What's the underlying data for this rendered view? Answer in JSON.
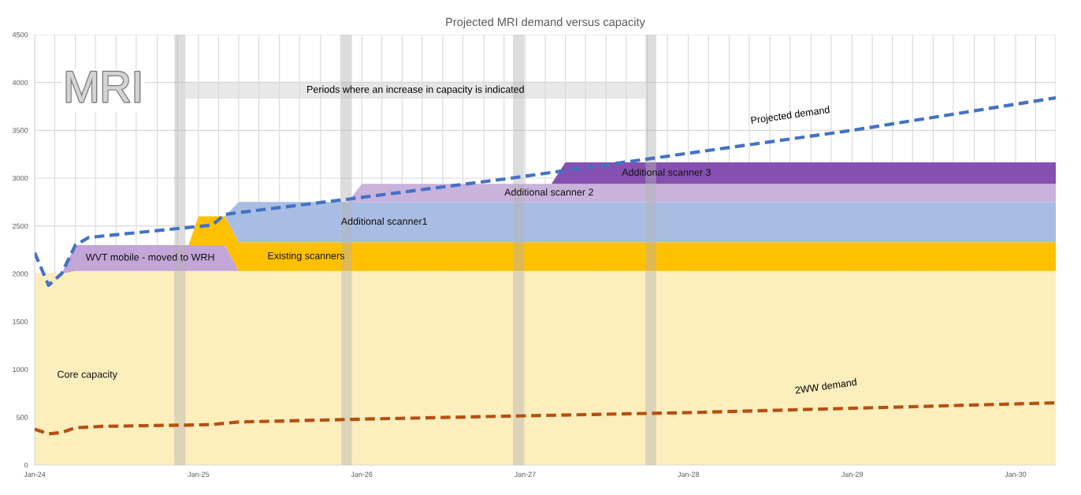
{
  "chart_data": {
    "type": "area",
    "title": "Projected MRI demand versus capacity",
    "stacked": true,
    "legend": false,
    "grid": true,
    "line_style": "dashed",
    "marker": "none",
    "x": [
      "2024-01",
      "2024-03",
      "2024-04",
      "2024-12-10",
      "2025-01",
      "2025-03",
      "2025-04",
      "2025-12",
      "2026-01",
      "2027-03",
      "2027-04",
      "2030-04"
    ],
    "series": [
      {
        "name": "Core capacity",
        "color": "#fdeebe",
        "values": [
          2000,
          2000,
          2030,
          2030,
          2030,
          2030,
          2030,
          2030,
          2030,
          2030,
          2030,
          2030
        ]
      },
      {
        "name": "WVT mobile - moved to WRH",
        "color": "#c3a5d8",
        "values": [
          0,
          0,
          270,
          270,
          270,
          270,
          0,
          0,
          0,
          0,
          0,
          0
        ]
      },
      {
        "name": "Existing scanners",
        "color": "#ffc000",
        "values": [
          0,
          0,
          0,
          0,
          300,
          300,
          300,
          300,
          300,
          300,
          300,
          300
        ]
      },
      {
        "name": "Additional scanner1",
        "color": "#a9bde3",
        "values": [
          0,
          0,
          0,
          0,
          0,
          0,
          420,
          420,
          420,
          420,
          420,
          420
        ]
      },
      {
        "name": "Additional scanner 2",
        "color": "#c9b3dd",
        "values": [
          0,
          0,
          0,
          0,
          0,
          0,
          0,
          0,
          190,
          190,
          190,
          190
        ]
      },
      {
        "name": "Additional scanner 3",
        "color": "#8650b0",
        "values": [
          0,
          0,
          0,
          0,
          0,
          0,
          0,
          0,
          0,
          0,
          225,
          225
        ]
      },
      {
        "name": "Projected demand",
        "type": "line",
        "color": "#4472c4",
        "x": [
          "2024-01",
          "2024-02",
          "2024-03",
          "2024-04",
          "2024-05",
          "2024-12",
          "2025-02",
          "2025-03",
          "2025-04",
          "2025-12",
          "2026-12",
          "2027-08",
          "2029-01",
          "2030-04"
        ],
        "values": [
          2220,
          1880,
          2000,
          2300,
          2380,
          2480,
          2510,
          2620,
          2640,
          2780,
          3000,
          3160,
          3500,
          3840
        ]
      },
      {
        "name": "2WW demand",
        "type": "line",
        "color": "#b5500f",
        "x": [
          "2024-01",
          "2024-02",
          "2024-03",
          "2024-04",
          "2024-06",
          "2025-01",
          "2025-02",
          "2025-04",
          "2026-01",
          "2027-01",
          "2028-01",
          "2029-01",
          "2030-04"
        ],
        "values": [
          375,
          326,
          340,
          390,
          405,
          420,
          425,
          450,
          480,
          515,
          548,
          594,
          650
        ]
      }
    ],
    "bands": [
      {
        "axis": "x",
        "from": "2024-11-08",
        "to": "2024-12-03",
        "color": "#b4b4b4"
      },
      {
        "axis": "x",
        "from": "2025-11-16",
        "to": "2025-12-10",
        "color": "#b4b4b4"
      },
      {
        "axis": "x",
        "from": "2026-12-05",
        "to": "2026-12-30",
        "color": "#b4b4b4"
      },
      {
        "axis": "x",
        "from": "2027-09-27",
        "to": "2027-10-21",
        "color": "#b4b4b4"
      }
    ],
    "annotations": [
      "MRI",
      "Periods where an increase in capacity is indicated"
    ],
    "ylim": [
      0,
      4500
    ],
    "yticks": [
      0,
      500,
      1000,
      1500,
      2000,
      2500,
      3000,
      3500,
      4000,
      4500
    ],
    "xlim": [
      "2024-01",
      "2030-04"
    ],
    "xticks": [
      {
        "value": "2024-01",
        "label": "Jan-24"
      },
      {
        "value": "2024-02-15",
        "label": null
      },
      {
        "value": "2024-04-01",
        "label": null
      },
      {
        "value": "2024-05-16",
        "label": null
      },
      {
        "value": "2024-07-01",
        "label": null
      },
      {
        "value": "2024-08-15",
        "label": null
      },
      {
        "value": "2024-10-01",
        "label": null
      },
      {
        "value": "2024-11-15",
        "label": null
      },
      {
        "value": "2025-01",
        "label": "Jan-25"
      },
      {
        "value": "2025-02-15",
        "label": null
      },
      {
        "value": "2025-04-01",
        "label": null
      },
      {
        "value": "2025-05-16",
        "label": null
      },
      {
        "value": "2025-07-01",
        "label": null
      },
      {
        "value": "2025-08-15",
        "label": null
      },
      {
        "value": "2025-10-01",
        "label": null
      },
      {
        "value": "2025-11-15",
        "label": null
      },
      {
        "value": "2026-01",
        "label": "Jan-26"
      },
      {
        "value": "2026-02-15",
        "label": null
      },
      {
        "value": "2026-04-01",
        "label": null
      },
      {
        "value": "2026-05-16",
        "label": null
      },
      {
        "value": "2026-07-01",
        "label": null
      },
      {
        "value": "2026-08-15",
        "label": null
      },
      {
        "value": "2026-10-01",
        "label": null
      },
      {
        "value": "2026-11-15",
        "label": null
      },
      {
        "value": "2027-01",
        "label": "Jan-27"
      },
      {
        "value": "2027-02-15",
        "label": null
      },
      {
        "value": "2027-04-01",
        "label": null
      },
      {
        "value": "2027-05-16",
        "label": null
      },
      {
        "value": "2027-07-01",
        "label": null
      },
      {
        "value": "2027-08-15",
        "label": null
      },
      {
        "value": "2027-10-01",
        "label": null
      },
      {
        "value": "2027-11-15",
        "label": null
      },
      {
        "value": "2028-01",
        "label": "Jan-28"
      },
      {
        "value": "2028-02-15",
        "label": null
      },
      {
        "value": "2028-04-01",
        "label": null
      },
      {
        "value": "2028-05-16",
        "label": null
      },
      {
        "value": "2028-07-01",
        "label": null
      },
      {
        "value": "2028-08-15",
        "label": null
      },
      {
        "value": "2028-10-01",
        "label": null
      },
      {
        "value": "2028-11-15",
        "label": null
      },
      {
        "value": "2029-01",
        "label": "Jan-29"
      },
      {
        "value": "2029-02-15",
        "label": null
      },
      {
        "value": "2029-04-01",
        "label": null
      },
      {
        "value": "2029-05-16",
        "label": null
      },
      {
        "value": "2029-07-01",
        "label": null
      },
      {
        "value": "2029-08-15",
        "label": null
      },
      {
        "value": "2029-10-01",
        "label": null
      },
      {
        "value": "2029-11-15",
        "label": null
      },
      {
        "value": "2030-01",
        "label": "Jan-30"
      },
      {
        "value": "2030-02-15",
        "label": null
      },
      {
        "value": "2030-04-01",
        "label": null
      }
    ]
  }
}
